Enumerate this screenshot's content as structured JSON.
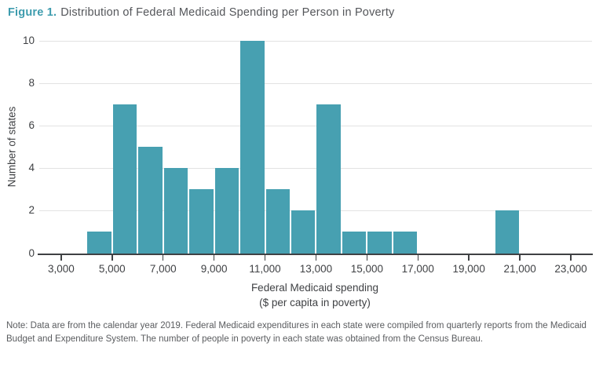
{
  "header": {
    "figure_label": "Figure 1.",
    "title": "Distribution of Federal Medicaid Spending per Person in Poverty"
  },
  "chart_data": {
    "type": "bar",
    "subtype": "histogram",
    "title": "Distribution of Federal Medicaid Spending per Person in Poverty",
    "ylabel": "Number of states",
    "xlabel_line1": "Federal Medicaid spending",
    "xlabel_line2": "($ per capita in poverty)",
    "xlim": [
      2140,
      23770
    ],
    "ylim": [
      0,
      10
    ],
    "grid": true,
    "legend_position": "none",
    "y_ticks": [
      0,
      2,
      4,
      6,
      8,
      10
    ],
    "x_ticks": [
      {
        "value": 3000,
        "label": "3,000"
      },
      {
        "value": 5000,
        "label": "5,000"
      },
      {
        "value": 7000,
        "label": "7,000"
      },
      {
        "value": 9000,
        "label": "9,000"
      },
      {
        "value": 11000,
        "label": "11,000"
      },
      {
        "value": 13000,
        "label": "13,000"
      },
      {
        "value": 15000,
        "label": "15,000"
      },
      {
        "value": 17000,
        "label": "17,000"
      },
      {
        "value": 19000,
        "label": "19,000"
      },
      {
        "value": 21000,
        "label": "21,000"
      },
      {
        "value": 23000,
        "label": "23,000"
      }
    ],
    "bin_width": 1000,
    "bins": [
      {
        "x0": 4000,
        "x1": 5000,
        "count": 1
      },
      {
        "x0": 5000,
        "x1": 6000,
        "count": 7
      },
      {
        "x0": 6000,
        "x1": 7000,
        "count": 5
      },
      {
        "x0": 7000,
        "x1": 8000,
        "count": 4
      },
      {
        "x0": 8000,
        "x1": 9000,
        "count": 3
      },
      {
        "x0": 9000,
        "x1": 10000,
        "count": 4
      },
      {
        "x0": 10000,
        "x1": 11000,
        "count": 10
      },
      {
        "x0": 11000,
        "x1": 12000,
        "count": 3
      },
      {
        "x0": 12000,
        "x1": 13000,
        "count": 2
      },
      {
        "x0": 13000,
        "x1": 14000,
        "count": 7
      },
      {
        "x0": 14000,
        "x1": 15000,
        "count": 1
      },
      {
        "x0": 15000,
        "x1": 16000,
        "count": 1
      },
      {
        "x0": 16000,
        "x1": 17000,
        "count": 1
      },
      {
        "x0": 20000,
        "x1": 21000,
        "count": 2
      }
    ],
    "colors": {
      "bar": "#47a0b1",
      "gridline": "#e2e2e2",
      "axis_line": "#3f4144",
      "axis_text": "#3f4144"
    }
  },
  "footer": {
    "note_lines": [
      "Note: Data are from the calendar year 2019. Federal Medicaid expenditures in each state were compiled from quarterly reports from the Medicaid",
      "Budget and Expenditure System. The number of people in poverty in each state was obtained from the Census Bureau."
    ]
  },
  "colors": {
    "figure_label": "#3e9cae",
    "title_text": "#54565a",
    "note_text": "#5a5c5f"
  }
}
